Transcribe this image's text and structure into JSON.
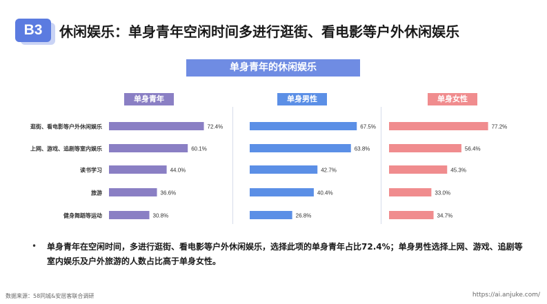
{
  "badge": "B3",
  "page_title": "休闲娱乐：单身青年空闲时间多进行逛街、看电影等户外休闲娱乐",
  "bullet": "•",
  "note": "单身青年在空闲时间，多进行逛街、看电影等户外休闲娱乐，选择此项的单身青年占比72.4%；单身男性选择上网、游戏、追剧等室内娱乐及户外旅游的人数占比高于单身女性。",
  "source": "数据来源：58同城&安居客联合调研",
  "url": "https://ai.anjuke.com/",
  "colors": {
    "accent": "#5b7be0",
    "all": "#8a7fc4",
    "male": "#5b8fe6",
    "female": "#f08c8e"
  },
  "chart_data": {
    "type": "bar",
    "orientation": "horizontal",
    "title": "单身青年的休闲娱乐",
    "categories": [
      "逛街、看电影等户外休闲娱乐",
      "上网、游戏、追剧等室内娱乐",
      "读书学习",
      "旅游",
      "健身舞蹈等运动"
    ],
    "series": [
      {
        "name": "单身青年",
        "values": [
          72.4,
          60.1,
          44.0,
          36.6,
          30.8
        ],
        "labels": [
          "72.4%",
          "60.1%",
          "44.0%",
          "36.6%",
          "30.8%"
        ]
      },
      {
        "name": "单身男性",
        "values": [
          67.5,
          63.8,
          42.7,
          40.4,
          26.8
        ],
        "labels": [
          "67.5%",
          "63.8%",
          "42.7%",
          "40.4%",
          "26.8%"
        ]
      },
      {
        "name": "单身女性",
        "values": [
          77.2,
          56.4,
          45.3,
          33.0,
          34.7
        ],
        "labels": [
          "77.2%",
          "56.4%",
          "45.3%",
          "33.0%",
          "34.7%"
        ]
      }
    ],
    "unit": "%",
    "grid": false,
    "legend": "none"
  }
}
